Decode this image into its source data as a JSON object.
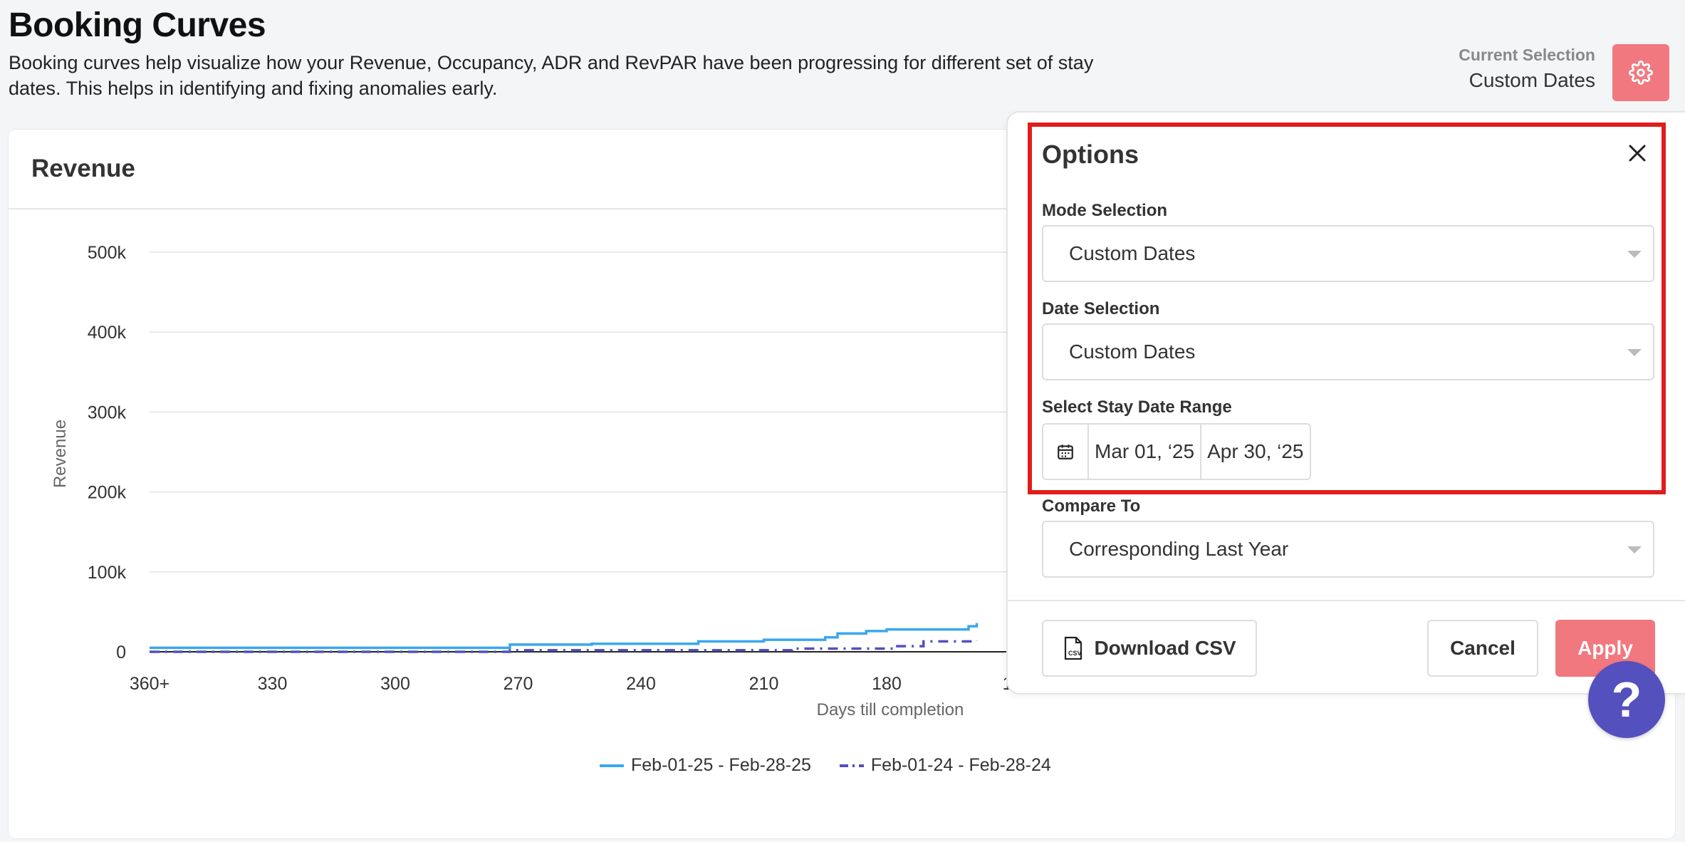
{
  "header": {
    "title": "Booking Curves",
    "description": "Booking curves help visualize how your Revenue, Occupancy, ADR and RevPAR have been progressing for different set of stay dates. This helps in identifying and fixing anomalies early.",
    "current_selection_label": "Current Selection",
    "current_selection_value": "Custom Dates",
    "settings_icon": "gear-icon",
    "settings_color": "#f2787f"
  },
  "chart_card": {
    "title": "Revenue"
  },
  "chart_data": {
    "type": "line",
    "title": "Revenue",
    "xlabel": "Days till completion",
    "ylabel": "Revenue",
    "x_tick_labels": [
      "360+",
      "330",
      "300",
      "270",
      "240",
      "210",
      "180",
      "1"
    ],
    "y_tick_labels": [
      "500k",
      "400k",
      "300k",
      "200k",
      "100k",
      "0"
    ],
    "ylim": [
      0,
      500000
    ],
    "x_reversed": true,
    "grid": true,
    "legend_position": "bottom",
    "series": [
      {
        "name": "Feb-01-25 - Feb-28-25",
        "color": "#3aa8ec",
        "style": "solid",
        "x": [
          360,
          273,
          272,
          252,
          226,
          210,
          195,
          192,
          185,
          180,
          160,
          158
        ],
        "y": [
          5000,
          5000,
          9000,
          10000,
          13000,
          15000,
          18000,
          23000,
          26000,
          28000,
          32000,
          36000
        ]
      },
      {
        "name": "Feb-01-24 - Feb-28-24",
        "color": "#5450bd",
        "style": "dashdot",
        "x": [
          360,
          273,
          272,
          204,
          203,
          183,
          178,
          171,
          158
        ],
        "y": [
          0,
          0,
          2000,
          2000,
          4000,
          4000,
          7000,
          13000,
          14000
        ]
      }
    ]
  },
  "options": {
    "title": "Options",
    "close_icon": "close-icon",
    "mode_selection": {
      "label": "Mode Selection",
      "value": "Custom Dates"
    },
    "date_selection": {
      "label": "Date Selection",
      "value": "Custom Dates"
    },
    "stay_date_range": {
      "label": "Select Stay Date Range",
      "start": "Mar 01, ‘25",
      "end": "Apr 30, ‘25",
      "icon": "calendar-icon"
    },
    "compare_to": {
      "label": "Compare To",
      "value": "Corresponding Last Year"
    },
    "download_label": "Download CSV",
    "download_icon": "csv-file-icon",
    "cancel_label": "Cancel",
    "apply_label": "Apply",
    "highlight_color": "#e01d1d"
  },
  "help": {
    "label": "?",
    "color": "#5450bd"
  }
}
